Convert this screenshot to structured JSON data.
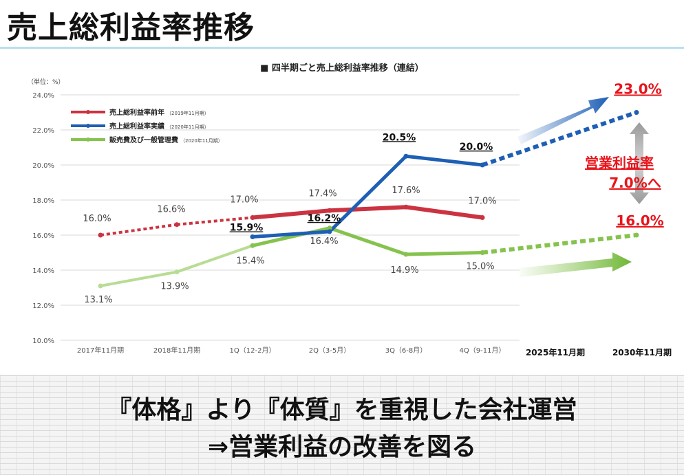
{
  "page": {
    "title": "売上総利益率推移",
    "footer_line1": "『体格』より『体質』を重視した会社運営",
    "footer_line2": "⇒営業利益の改善を図る"
  },
  "chart_data": {
    "type": "line",
    "title": "■ 四半期ごと売上総利益率推移（連結）",
    "unit_label": "（単位：%）",
    "ylim": [
      10,
      24
    ],
    "y_ticks": [
      "24.0%",
      "22.0%",
      "20.0%",
      "18.0%",
      "16.0%",
      "14.0%",
      "12.0%",
      "10.0%"
    ],
    "y_tick_values": [
      24,
      22,
      20,
      18,
      16,
      14,
      12,
      10
    ],
    "categories": [
      "2017年11月期",
      "2018年11月期",
      "1Q（12-2月）",
      "2Q（3-5月）",
      "3Q（6-8月）",
      "4Q（9-11月）",
      "2025年11月期",
      "2030年11月期"
    ],
    "grid": true,
    "legend_position": "top-left",
    "series": [
      {
        "name": "売上総利益率前年",
        "name_suffix": "（2019年11月期）",
        "color": "#cc3340",
        "values": [
          16.0,
          16.6,
          17.0,
          17.4,
          17.6,
          17.0,
          null,
          null
        ],
        "labels": [
          "16.0%",
          "16.6%",
          "17.0%",
          "17.4%",
          "17.6%",
          "17.0%",
          null,
          null
        ]
      },
      {
        "name": "売上総利益率実績",
        "name_suffix": "（2020年11月期）",
        "color": "#1e5fb5",
        "values": [
          null,
          null,
          15.9,
          16.2,
          20.5,
          20.0,
          null,
          23.0
        ],
        "labels": [
          null,
          null,
          "15.9%",
          "16.2%",
          "20.5%",
          "20.0%",
          null,
          "23.0%"
        ]
      },
      {
        "name": "販売費及び一般管理費",
        "name_suffix": "（2020年11月期）",
        "color": "#86c34e",
        "color_light": "#b8dc93",
        "values": [
          13.1,
          13.9,
          15.4,
          16.4,
          14.9,
          15.0,
          null,
          16.0
        ],
        "labels": [
          "13.1%",
          "13.9%",
          "15.4%",
          "16.4%",
          "14.9%",
          "15.0%",
          null,
          "16.0%"
        ]
      }
    ],
    "annotation": {
      "line1": "営業利益率",
      "line2": "7.0%へ",
      "color": "#e8141b"
    }
  }
}
